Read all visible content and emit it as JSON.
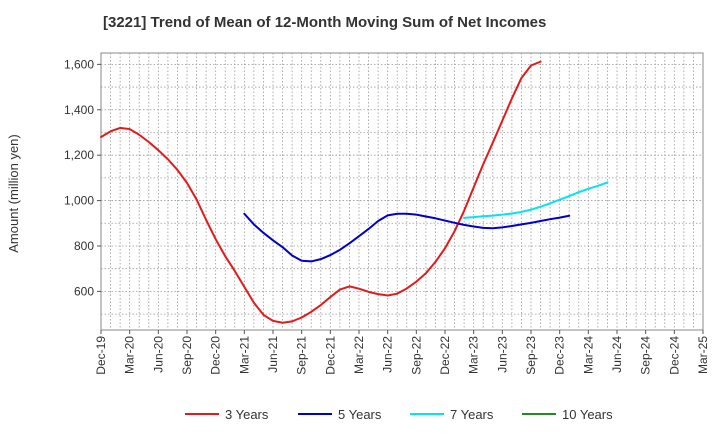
{
  "chart_data": {
    "type": "line",
    "title": "[3221]  Trend of Mean of 12-Month Moving Sum of Net Incomes",
    "ylabel": "Amount (million yen)",
    "xlabel": "",
    "ylim": [
      430,
      1650
    ],
    "yticks": [
      600,
      800,
      1000,
      1200,
      1400,
      1600
    ],
    "ytick_labels": [
      "600",
      "800",
      "1,000",
      "1,200",
      "1,400",
      "1,600"
    ],
    "xtick_labels": [
      "Dec-19",
      "Mar-20",
      "Jun-20",
      "Sep-20",
      "Dec-20",
      "Mar-21",
      "Jun-21",
      "Sep-21",
      "Dec-21",
      "Mar-22",
      "Jun-22",
      "Sep-22",
      "Dec-22",
      "Mar-23",
      "Jun-23",
      "Sep-23",
      "Dec-23",
      "Mar-24",
      "Jun-24",
      "Sep-24",
      "Dec-24",
      "Mar-25"
    ],
    "grid": true,
    "legend_position": "bottom",
    "series": [
      {
        "name": "3 Years",
        "color": "#e31a1c",
        "start_index": 0,
        "values": [
          1280,
          1305,
          1320,
          1315,
          1290,
          1258,
          1222,
          1182,
          1135,
          1078,
          1005,
          915,
          830,
          755,
          690,
          620,
          550,
          497,
          470,
          462,
          468,
          485,
          510,
          540,
          575,
          608,
          622,
          612,
          598,
          588,
          582,
          590,
          613,
          643,
          680,
          730,
          790,
          865,
          955,
          1058,
          1160,
          1255,
          1352,
          1450,
          1540,
          1595,
          1612
        ]
      },
      {
        "name": "5 Years",
        "color": "#0000cc",
        "start_index": 15,
        "values": [
          942,
          895,
          858,
          825,
          795,
          758,
          735,
          732,
          742,
          760,
          783,
          812,
          843,
          875,
          910,
          935,
          942,
          942,
          938,
          930,
          922,
          912,
          902,
          893,
          886,
          880,
          878,
          882,
          888,
          895,
          902,
          910,
          918,
          925,
          933
        ]
      },
      {
        "name": "7 Years",
        "color": "#00e5ee",
        "start_index": 38,
        "values": [
          924,
          927,
          931,
          934,
          938,
          943,
          950,
          960,
          973,
          988,
          1004,
          1020,
          1037,
          1052,
          1065,
          1080
        ]
      },
      {
        "name": "10 Years",
        "color": "#228b22",
        "start_index": 0,
        "values": []
      }
    ]
  }
}
